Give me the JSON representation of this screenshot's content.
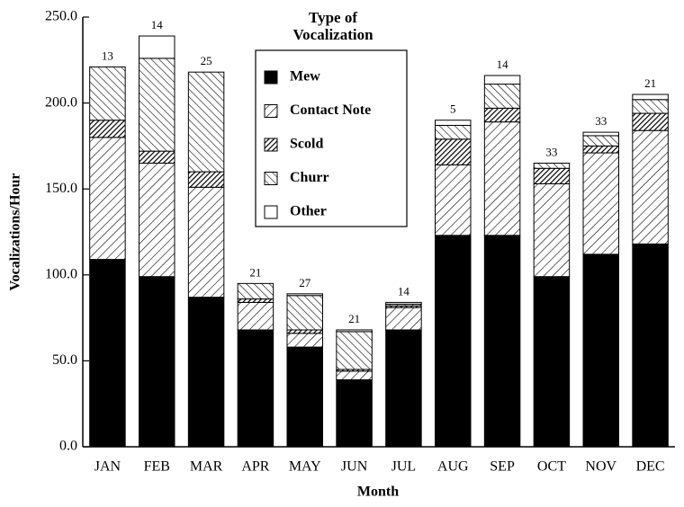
{
  "chart_data": {
    "type": "stacked_bar",
    "x_label": "Month",
    "y_label": "Vocalizations/Hour",
    "legend_title": "Type of Vocalization",
    "categories": [
      "JAN",
      "FEB",
      "MAR",
      "APR",
      "MAY",
      "JUN",
      "JUL",
      "AUG",
      "SEP",
      "OCT",
      "NOV",
      "DEC"
    ],
    "series": [
      {
        "name": "Mew",
        "color": "#000000",
        "values": [
          109,
          99,
          87,
          68,
          58,
          39,
          68,
          123,
          123,
          99,
          112,
          118
        ]
      },
      {
        "name": "Contact Note",
        "color": "#ffffff",
        "values": [
          71,
          66,
          64,
          16,
          8,
          5,
          13,
          41,
          66,
          54,
          59,
          66
        ]
      },
      {
        "name": "Scold",
        "color": "#000000",
        "values": [
          10,
          7,
          9,
          2,
          2,
          1,
          1,
          15,
          8,
          9,
          4,
          10
        ]
      },
      {
        "name": "Churr",
        "color": "#ffffff",
        "values": [
          31,
          54,
          58,
          9,
          20,
          22,
          1,
          8,
          14,
          3,
          6,
          8
        ]
      },
      {
        "name": "Other",
        "color": "#ffffff",
        "values": [
          0,
          13,
          0,
          0,
          1,
          1,
          1,
          3,
          5,
          0,
          2,
          3
        ]
      }
    ],
    "annotations": [
      "13",
      "14",
      "25",
      "21",
      "27",
      "21",
      "14",
      "5",
      "14",
      "33",
      "33",
      "21"
    ],
    "ylim": [
      0,
      250
    ],
    "yticks": [
      {
        "value": 0,
        "label": "0.0"
      },
      {
        "value": 50,
        "label": "50.0"
      },
      {
        "value": 100,
        "label": "100.0"
      },
      {
        "value": 150,
        "label": "150.0"
      },
      {
        "value": 200,
        "label": "200.0"
      },
      {
        "value": 250,
        "label": "250.0"
      }
    ],
    "grid": false
  }
}
